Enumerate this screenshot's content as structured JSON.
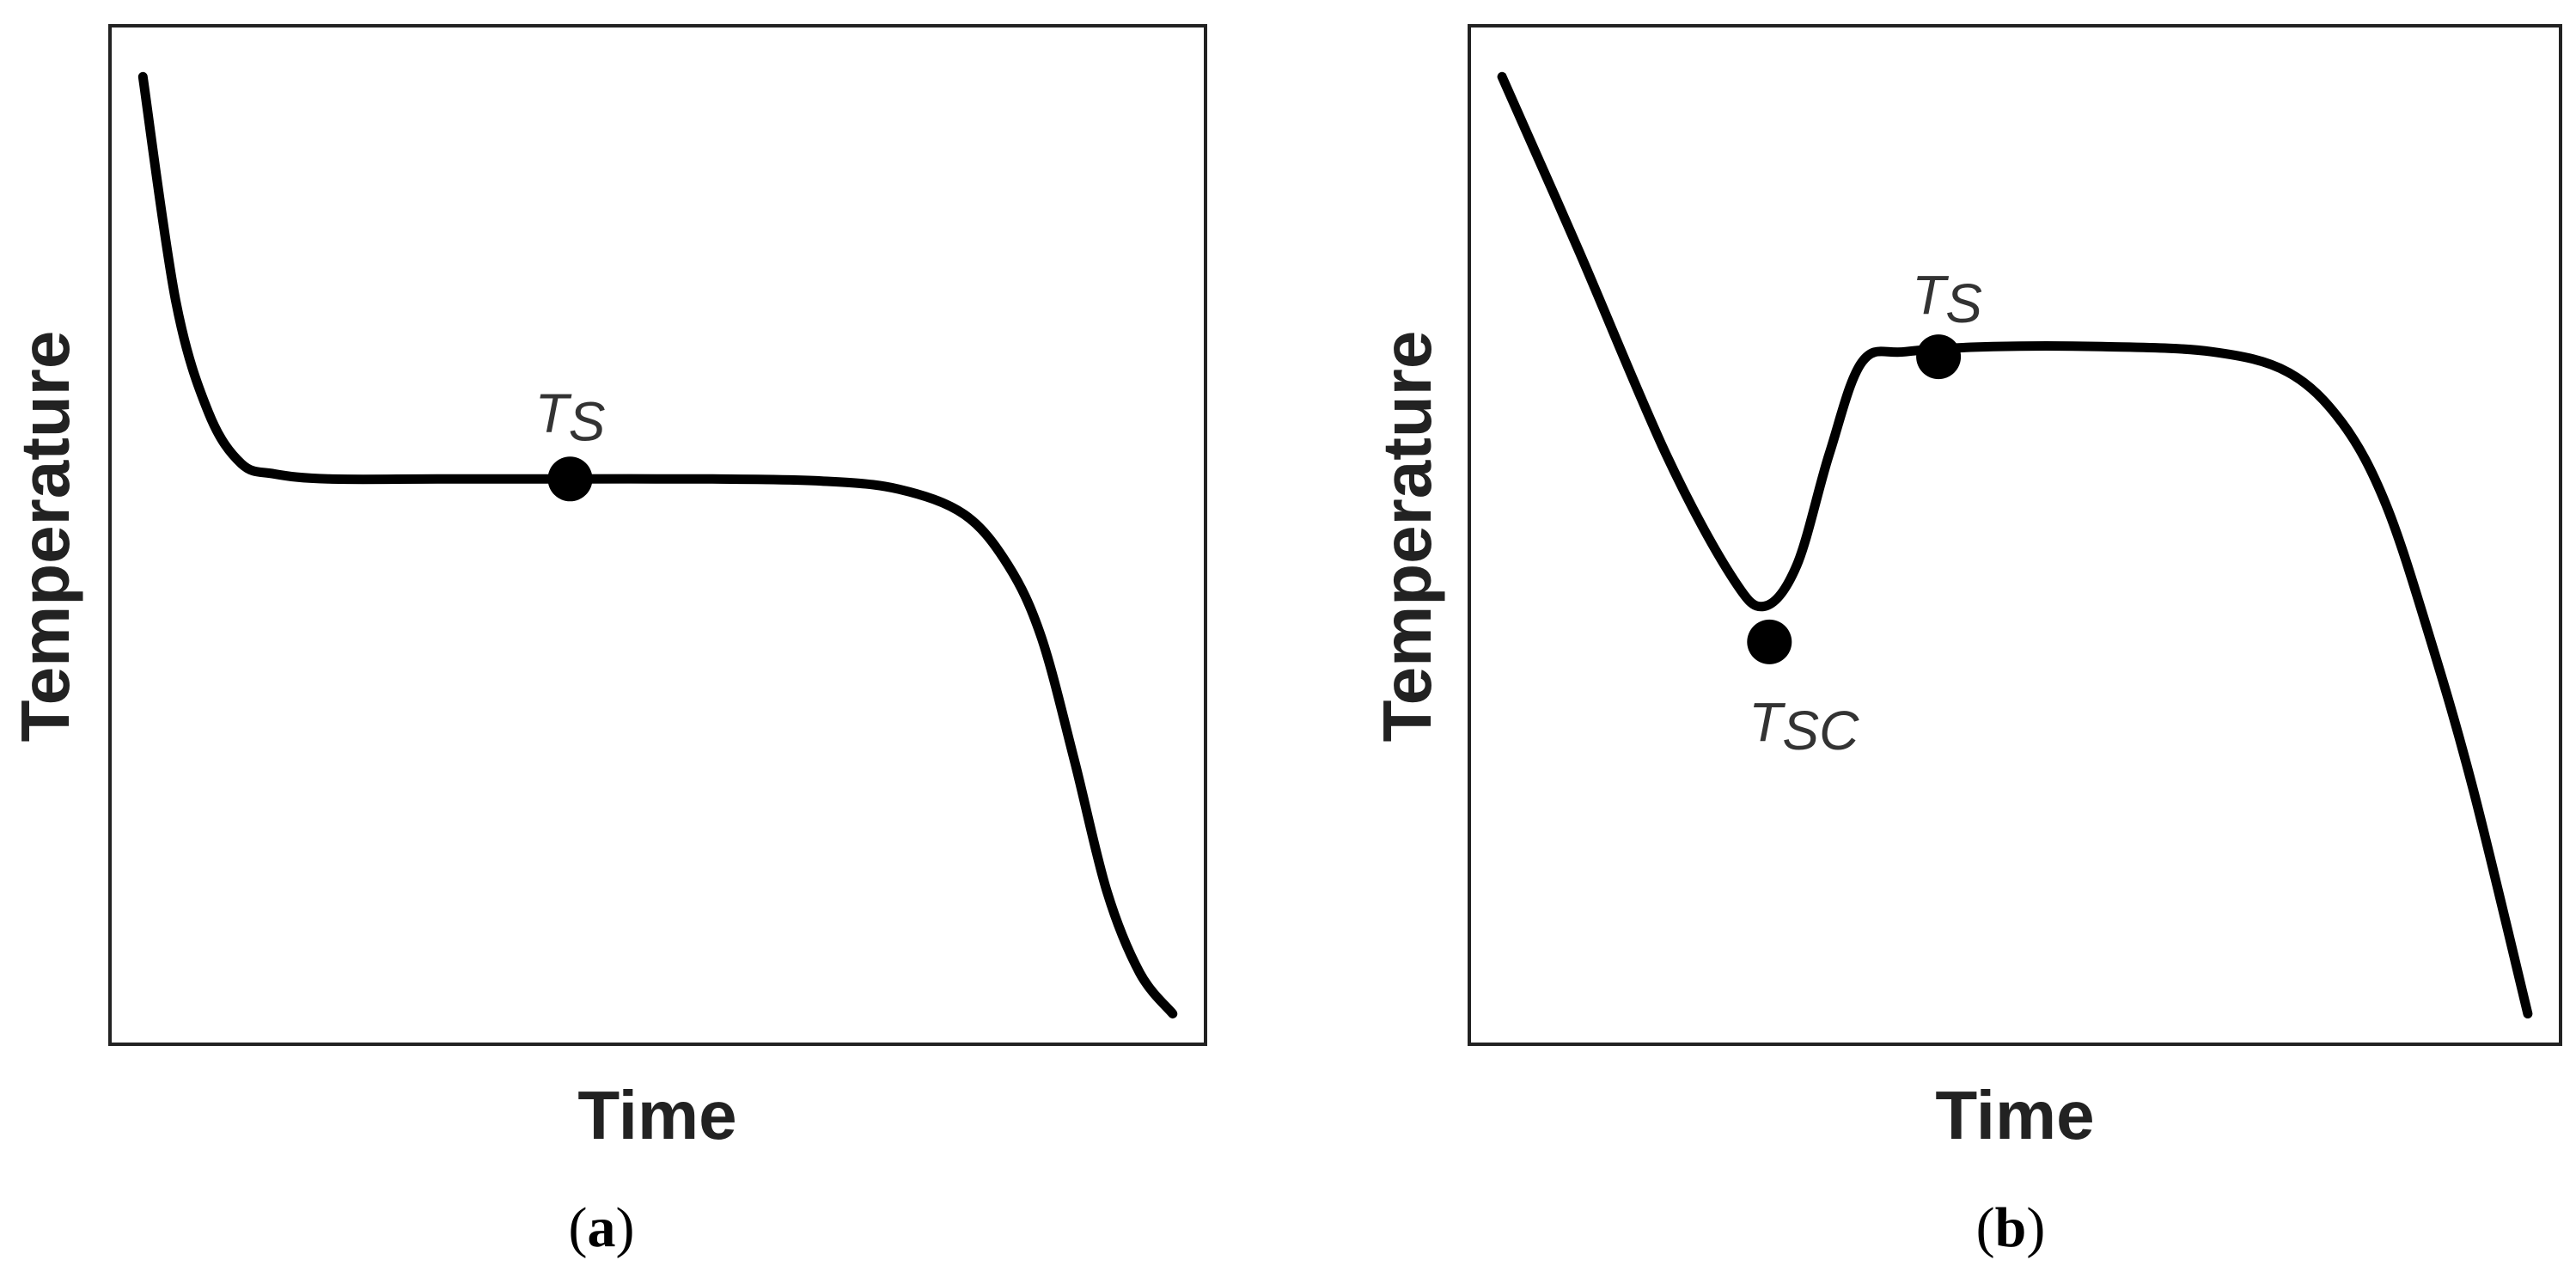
{
  "figure": {
    "panels": [
      {
        "label_open": "(",
        "label_letter": "a",
        "label_close": ")"
      },
      {
        "label_open": "(",
        "label_letter": "b",
        "label_close": ")"
      }
    ]
  },
  "chart_data": [
    {
      "type": "line",
      "panel": "a",
      "xlabel": "Time",
      "ylabel": "Temperature",
      "xlim": [
        0,
        100
      ],
      "ylim": [
        0,
        100
      ],
      "grid": false,
      "legend": "none",
      "line_color": "#000000",
      "series": [
        {
          "x": [
            3,
            6,
            9,
            12,
            15,
            20,
            30,
            42,
            55,
            65,
            72,
            78,
            82,
            85,
            88,
            91,
            94,
            97
          ],
          "values": [
            95,
            73,
            62,
            57,
            56,
            55.5,
            55.5,
            55.5,
            55.5,
            55.3,
            54.5,
            52,
            47,
            40,
            28,
            15,
            7,
            3
          ]
        }
      ],
      "points": [
        {
          "x": 42,
          "y": 55.5,
          "label": "T",
          "label_sub": "S"
        }
      ]
    },
    {
      "type": "line",
      "panel": "b",
      "xlabel": "Time",
      "ylabel": "Temperature",
      "xlim": [
        0,
        100
      ],
      "ylim": [
        0,
        100
      ],
      "grid": false,
      "legend": "none",
      "line_color": "#000000",
      "series": [
        {
          "x": [
            3,
            10,
            18,
            24,
            27,
            30,
            33,
            36,
            40,
            48,
            58,
            68,
            75,
            80,
            84,
            88,
            92,
            97
          ],
          "values": [
            95,
            78,
            58,
            46,
            43,
            47,
            58,
            67,
            68,
            68.5,
            68.5,
            68,
            66,
            61,
            53,
            40,
            25,
            3
          ]
        }
      ],
      "points": [
        {
          "x": 27.5,
          "y": 39.5,
          "label": "T",
          "label_sub": "SC"
        },
        {
          "x": 43,
          "y": 67.5,
          "label": "T",
          "label_sub": "S"
        }
      ]
    }
  ]
}
